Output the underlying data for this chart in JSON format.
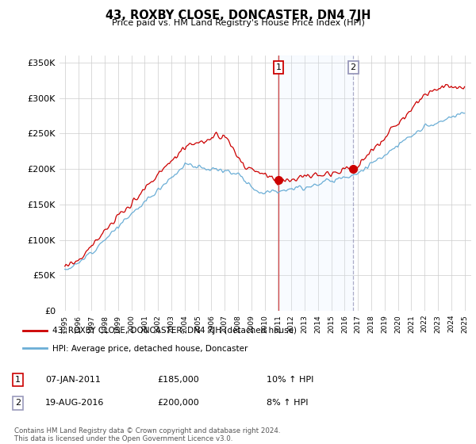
{
  "title": "43, ROXBY CLOSE, DONCASTER, DN4 7JH",
  "subtitle": "Price paid vs. HM Land Registry's House Price Index (HPI)",
  "ylabel_ticks": [
    "£0",
    "£50K",
    "£100K",
    "£150K",
    "£200K",
    "£250K",
    "£300K",
    "£350K"
  ],
  "ytick_values": [
    0,
    50000,
    100000,
    150000,
    200000,
    250000,
    300000,
    350000
  ],
  "ylim": [
    0,
    360000
  ],
  "hpi_color": "#6baed6",
  "price_color": "#cc0000",
  "vline1_color": "#cc0000",
  "vline1_style": "solid",
  "vline2_color": "#9999bb",
  "vline2_style": "dashed",
  "span_color": "#ddeeff",
  "background_fig": "#ffffff",
  "marker1_year": 2011.04,
  "marker2_year": 2016.64,
  "marker1_value": 185000,
  "marker2_value": 200000,
  "legend_label1": "43, ROXBY CLOSE, DONCASTER, DN4 7JH (detached house)",
  "legend_label2": "HPI: Average price, detached house, Doncaster",
  "table_entries": [
    {
      "num": "1",
      "date": "07-JAN-2011",
      "price": "£185,000",
      "change": "10% ↑ HPI"
    },
    {
      "num": "2",
      "date": "19-AUG-2016",
      "price": "£200,000",
      "change": "8% ↑ HPI"
    }
  ],
  "footer": "Contains HM Land Registry data © Crown copyright and database right 2024.\nThis data is licensed under the Open Government Licence v3.0.",
  "xstart": 1995,
  "xend": 2025,
  "grid_color": "#cccccc"
}
